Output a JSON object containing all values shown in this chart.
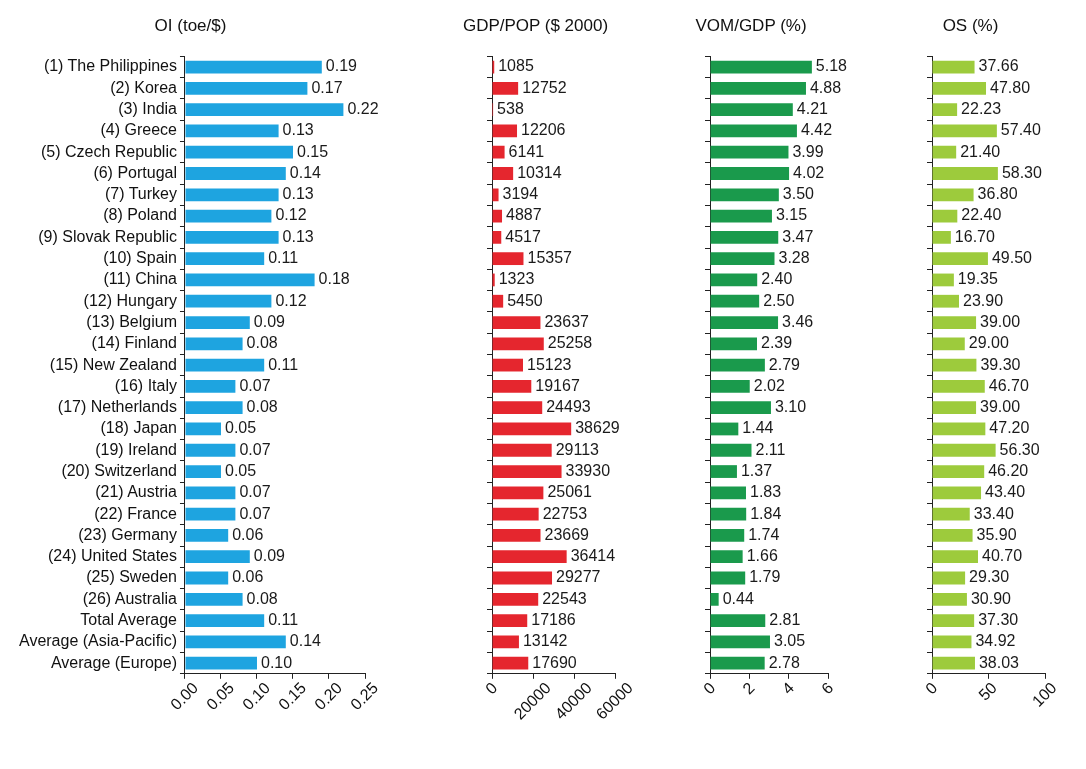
{
  "chart_data": [
    {
      "type": "bar",
      "orientation": "horizontal",
      "title": "OI (toe/$)",
      "categories": [
        "(1) The Philippines",
        "(2) Korea",
        "(3) India",
        "(4) Greece",
        "(5) Czech Republic",
        "(6) Portugal",
        "(7) Turkey",
        "(8) Poland",
        "(9) Slovak Republic",
        "(10) Spain",
        "(11) China",
        "(12) Hungary",
        "(13) Belgium",
        "(14) Finland",
        "(15) New Zealand",
        "(16) Italy",
        "(17) Netherlands",
        "(18) Japan",
        "(19) Ireland",
        "(20) Switzerland",
        "(21) Austria",
        "(22) France",
        "(23) Germany",
        "(24) United States",
        "(25) Sweden",
        "(26) Australia",
        "Total Average",
        "Average (Asia-Pacific)",
        "Average (Europe)"
      ],
      "values": [
        0.19,
        0.17,
        0.22,
        0.13,
        0.15,
        0.14,
        0.13,
        0.12,
        0.13,
        0.11,
        0.18,
        0.12,
        0.09,
        0.08,
        0.11,
        0.07,
        0.08,
        0.05,
        0.07,
        0.05,
        0.07,
        0.07,
        0.06,
        0.09,
        0.06,
        0.08,
        0.11,
        0.14,
        0.1
      ],
      "value_labels": [
        "0.19",
        "0.17",
        "0.22",
        "0.13",
        "0.15",
        "0.14",
        "0.13",
        "0.12",
        "0.13",
        "0.11",
        "0.18",
        "0.12",
        "0.09",
        "0.08",
        "0.11",
        "0.07",
        "0.08",
        "0.05",
        "0.07",
        "0.05",
        "0.07",
        "0.07",
        "0.06",
        "0.09",
        "0.06",
        "0.08",
        "0.11",
        "0.14",
        "0.10"
      ],
      "color": "#1ea4e0",
      "xlim": [
        0,
        0.25
      ],
      "xticks": [
        {
          "value": 0,
          "label": "0.00"
        },
        0.05,
        {
          "value": 0.1,
          "label": "0.10"
        },
        0.15,
        {
          "value": 0.2,
          "label": "0.20"
        },
        0.25
      ],
      "grid": false
    },
    {
      "type": "bar",
      "orientation": "horizontal",
      "title": "GDP/POP ($ 2000)",
      "categories": [
        null,
        null,
        null,
        null,
        null,
        null,
        null,
        null,
        null,
        null,
        null,
        null,
        null,
        null,
        null,
        null,
        null,
        null,
        null,
        null,
        null,
        null,
        null,
        null,
        null,
        null,
        null,
        null,
        null
      ],
      "values": [
        1085,
        12752,
        538,
        12206,
        6141,
        10314,
        3194,
        4887,
        4517,
        15357,
        1323,
        5450,
        23637,
        25258,
        15123,
        19167,
        24493,
        38629,
        29113,
        33930,
        25061,
        22753,
        23669,
        36414,
        29277,
        22543,
        17186,
        13142,
        17690
      ],
      "data_labels": true,
      "color": "#e5262e",
      "xlim": [
        0,
        60000
      ],
      "xticks": [
        0,
        20000,
        40000,
        60000
      ],
      "grid": false
    },
    {
      "type": "bar",
      "orientation": "horizontal",
      "title": "VOM/GDP (%)",
      "categories": [
        null,
        null,
        null,
        null,
        null,
        null,
        null,
        null,
        null,
        null,
        null,
        null,
        null,
        null,
        null,
        null,
        null,
        null,
        null,
        null,
        null,
        null,
        null,
        null,
        null,
        null,
        null,
        null,
        null
      ],
      "values": [
        5.18,
        4.88,
        4.21,
        4.42,
        3.99,
        4.02,
        3.5,
        3.15,
        3.47,
        3.28,
        2.4,
        2.5,
        3.46,
        2.39,
        2.79,
        2.02,
        3.1,
        1.44,
        2.11,
        1.37,
        1.83,
        1.84,
        1.74,
        1.66,
        1.79,
        0.44,
        2.81,
        3.05,
        2.78
      ],
      "value_labels": [
        "5.18",
        "4.88",
        "4.21",
        "4.42",
        "3.99",
        "4.02",
        "3.50",
        "3.15",
        "3.47",
        "3.28",
        "2.40",
        "2.50",
        "3.46",
        "2.39",
        "2.79",
        "2.02",
        "3.10",
        "1.44",
        "2.11",
        "1.37",
        "1.83",
        "1.84",
        "1.74",
        "1.66",
        "1.79",
        "0.44",
        "2.81",
        "3.05",
        "2.78"
      ],
      "color": "#1a9a4c",
      "xlim": [
        0,
        6
      ],
      "xticks": [
        0,
        2,
        4,
        6
      ],
      "grid": false
    },
    {
      "type": "bar",
      "orientation": "horizontal",
      "title": "OS (%)",
      "categories": [
        null,
        null,
        null,
        null,
        null,
        null,
        null,
        null,
        null,
        null,
        null,
        null,
        null,
        null,
        null,
        null,
        null,
        null,
        null,
        null,
        null,
        null,
        null,
        null,
        null,
        null,
        null,
        null,
        null
      ],
      "values": [
        37.66,
        47.8,
        22.23,
        57.4,
        21.4,
        58.3,
        36.8,
        22.4,
        16.7,
        49.5,
        19.35,
        23.9,
        39.0,
        29.0,
        39.3,
        46.7,
        39.0,
        47.2,
        56.3,
        46.2,
        43.4,
        33.4,
        35.9,
        40.7,
        29.3,
        30.9,
        37.3,
        34.92,
        38.03
      ],
      "value_labels": [
        "37.66",
        "47.80",
        "22.23",
        "57.40",
        "21.40",
        "58.30",
        "36.80",
        "22.40",
        "16.70",
        "49.50",
        "19.35",
        "23.90",
        "39.00",
        "29.00",
        "39.30",
        "46.70",
        "39.00",
        "47.20",
        "56.30",
        "46.20",
        "43.40",
        "33.40",
        "35.90",
        "40.70",
        "29.30",
        "30.90",
        "37.30",
        "34.92",
        "38.03"
      ],
      "color": "#9dcb3c",
      "xlim": [
        0,
        100
      ],
      "xticks": [
        0,
        50,
        100
      ],
      "grid": false
    }
  ]
}
